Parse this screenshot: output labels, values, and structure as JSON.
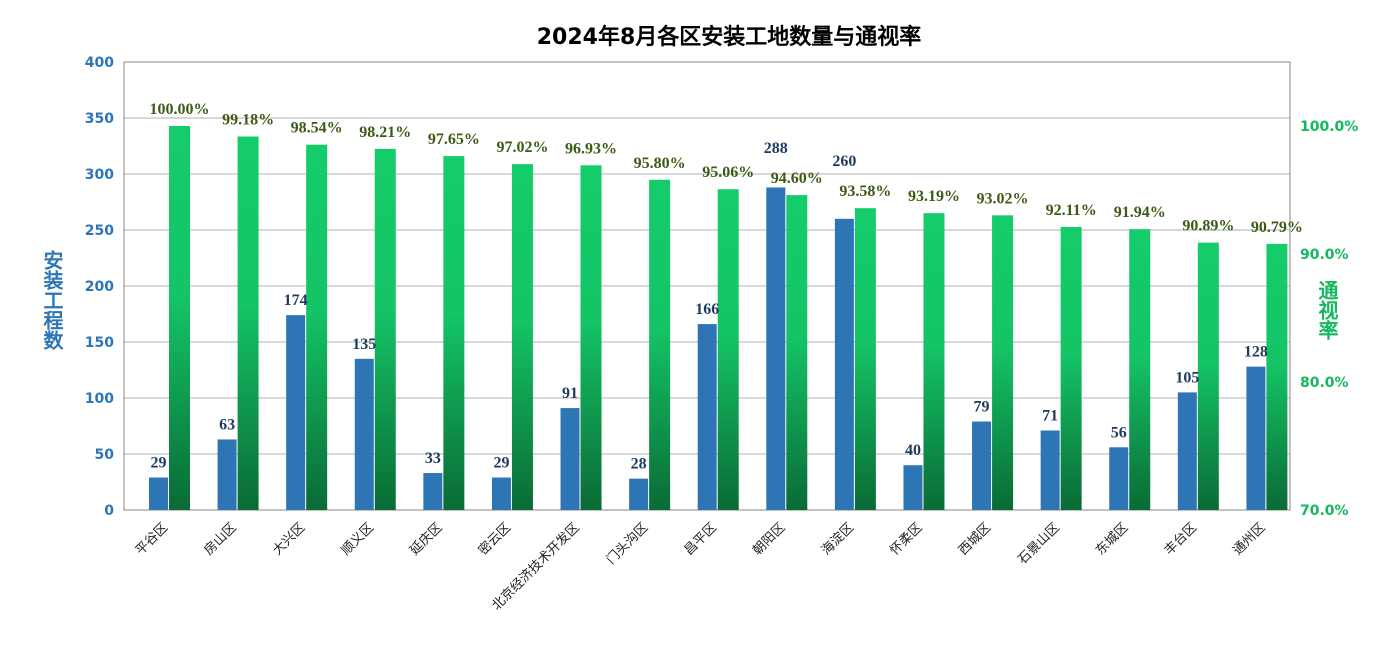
{
  "chart_data": {
    "type": "bar",
    "title": "2024年8月各区安装工地数量与通视率",
    "categories": [
      "平谷区",
      "房山区",
      "大兴区",
      "顺义区",
      "延庆区",
      "密云区",
      "北京经济技术开发区",
      "门头沟区",
      "昌平区",
      "朝阳区",
      "海淀区",
      "怀柔区",
      "西城区",
      "石景山区",
      "东城区",
      "丰台区",
      "通州区"
    ],
    "series": [
      {
        "name": "安装工程数",
        "axis": "left",
        "color": "#2e75b6",
        "values": [
          29,
          63,
          174,
          135,
          33,
          29,
          91,
          28,
          166,
          288,
          260,
          40,
          79,
          71,
          56,
          105,
          128
        ]
      },
      {
        "name": "通视率",
        "axis": "right",
        "color": "#15cc6a",
        "values": [
          100.0,
          99.18,
          98.54,
          98.21,
          97.65,
          97.02,
          96.93,
          95.8,
          95.06,
          94.6,
          93.58,
          93.19,
          93.02,
          92.11,
          91.94,
          90.89,
          90.79
        ],
        "labels": [
          "100.00%",
          "99.18%",
          "98.54%",
          "98.21%",
          "97.65%",
          "97.02%",
          "96.93%",
          "95.80%",
          "95.06%",
          "94.60%",
          "93.58%",
          "93.19%",
          "93.02%",
          "92.11%",
          "91.94%",
          "90.89%",
          "90.79%"
        ]
      }
    ],
    "ylabel": "安装工程数",
    "ylabel_right": "通视率",
    "ylim": [
      0,
      400
    ],
    "yticks": [
      "0",
      "50",
      "100",
      "150",
      "200",
      "250",
      "300",
      "350",
      "400"
    ],
    "ylim_right": [
      70,
      105
    ],
    "yticks_right": [
      "70.0%",
      "80.0%",
      "90.0%",
      "100.0%"
    ],
    "grid": true,
    "legend": "none",
    "colors": {
      "bar_left": "#2e75b6",
      "bar_right_top": "#15cc6a",
      "bar_right_bottom": "#0a6b35"
    }
  }
}
